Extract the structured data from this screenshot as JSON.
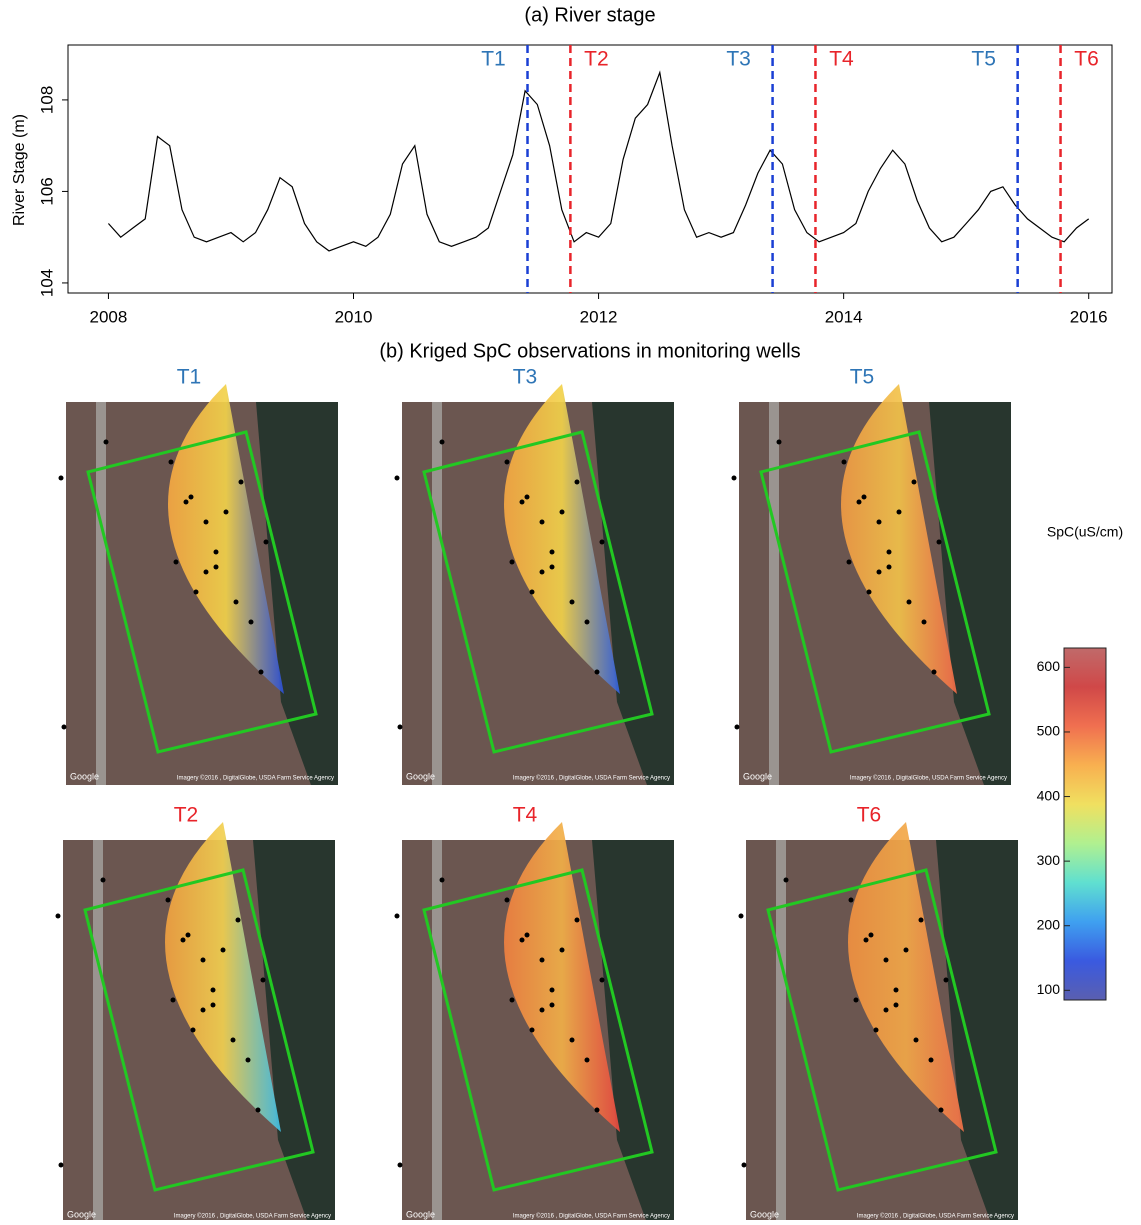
{
  "chart_data": [
    {
      "type": "line",
      "title": "(a) River stage",
      "y_label": "River Stage (m)",
      "color": "#000000",
      "x": [
        2008.0,
        2008.1,
        2008.2,
        2008.3,
        2008.4,
        2008.5,
        2008.6,
        2008.7,
        2008.8,
        2008.9,
        2009.0,
        2009.1,
        2009.2,
        2009.3,
        2009.4,
        2009.5,
        2009.6,
        2009.7,
        2009.8,
        2009.9,
        2010.0,
        2010.1,
        2010.2,
        2010.3,
        2010.4,
        2010.5,
        2010.6,
        2010.7,
        2010.8,
        2010.9,
        2011.0,
        2011.1,
        2011.2,
        2011.3,
        2011.4,
        2011.5,
        2011.6,
        2011.7,
        2011.8,
        2011.9,
        2012.0,
        2012.1,
        2012.2,
        2012.3,
        2012.4,
        2012.5,
        2012.6,
        2012.7,
        2012.8,
        2012.9,
        2013.0,
        2013.1,
        2013.2,
        2013.3,
        2013.4,
        2013.5,
        2013.6,
        2013.7,
        2013.8,
        2013.9,
        2014.0,
        2014.1,
        2014.2,
        2014.3,
        2014.4,
        2014.5,
        2014.6,
        2014.7,
        2014.8,
        2014.9,
        2015.0,
        2015.1,
        2015.2,
        2015.3,
        2015.4,
        2015.5,
        2015.6,
        2015.7,
        2015.8,
        2015.9,
        2016.0
      ],
      "values": [
        105.3,
        105.0,
        105.2,
        105.4,
        107.2,
        107.0,
        105.6,
        105.0,
        104.9,
        105.0,
        105.1,
        104.9,
        105.1,
        105.6,
        106.3,
        106.1,
        105.3,
        104.9,
        104.7,
        104.8,
        104.9,
        104.8,
        105.0,
        105.5,
        106.6,
        107.0,
        105.5,
        104.9,
        104.8,
        104.9,
        105.0,
        105.2,
        106.0,
        106.8,
        108.2,
        107.9,
        107.0,
        105.6,
        104.9,
        105.1,
        105.0,
        105.3,
        106.7,
        107.6,
        107.9,
        108.6,
        107.0,
        105.6,
        105.0,
        105.1,
        105.0,
        105.1,
        105.7,
        106.4,
        106.9,
        106.6,
        105.6,
        105.1,
        104.9,
        105.0,
        105.1,
        105.3,
        106.0,
        106.5,
        106.9,
        106.6,
        105.8,
        105.2,
        104.9,
        105.0,
        105.3,
        105.6,
        106.0,
        106.1,
        105.7,
        105.4,
        105.2,
        105.0,
        104.9,
        105.2,
        105.4
      ],
      "xlim": [
        2007.67,
        2016.19
      ],
      "xticks": [
        2008,
        2010,
        2012,
        2014,
        2016
      ],
      "ylim": [
        103.78,
        109.2
      ],
      "yticks": [
        104,
        106,
        108
      ],
      "markers": [
        {
          "label": "T1",
          "x": 2011.42,
          "color": "#1a3fd4",
          "label_color": "#2e75b6"
        },
        {
          "label": "T2",
          "x": 2011.77,
          "color": "#e8242a",
          "label_color": "#e8242a"
        },
        {
          "label": "T3",
          "x": 2013.42,
          "color": "#1a3fd4",
          "label_color": "#2e75b6"
        },
        {
          "label": "T4",
          "x": 2013.77,
          "color": "#e8242a",
          "label_color": "#e8242a"
        },
        {
          "label": "T5",
          "x": 2015.42,
          "color": "#1a3fd4",
          "label_color": "#2e75b6"
        },
        {
          "label": "T6",
          "x": 2015.77,
          "color": "#e8242a",
          "label_color": "#e8242a"
        }
      ]
    },
    {
      "type": "map",
      "title": "(b) Kriged SpC observations in monitoring wells",
      "attribution": "Google",
      "imagery": "Imagery ©2016 , DigitalGlobe, USDA Farm Service Agency",
      "panels": [
        {
          "title": "T1",
          "title_color": "#2e75b6",
          "fan_colors": [
            "#f5a742",
            "#f2d24a",
            "#2a4fd8"
          ]
        },
        {
          "title": "T3",
          "title_color": "#2e75b6",
          "fan_colors": [
            "#f5a742",
            "#f2d24a",
            "#3060e0"
          ]
        },
        {
          "title": "T5",
          "title_color": "#2e75b6",
          "fan_colors": [
            "#f09a44",
            "#f2c24a",
            "#f06a48"
          ]
        },
        {
          "title": "T2",
          "title_color": "#e8242a",
          "fan_colors": [
            "#f0a040",
            "#f2d050",
            "#40c0e8"
          ]
        },
        {
          "title": "T4",
          "title_color": "#e8242a",
          "fan_colors": [
            "#f08040",
            "#f2b048",
            "#e84840"
          ]
        },
        {
          "title": "T6",
          "title_color": "#e8242a",
          "fan_colors": [
            "#f09040",
            "#f2a848",
            "#f07048"
          ]
        }
      ],
      "colorbar": {
        "label": "SpC(uS/cm)",
        "lim": [
          85,
          630
        ],
        "ticks": [
          100,
          200,
          300,
          400,
          500,
          600
        ],
        "colors": [
          "#5a5fb0",
          "#3a5ae0",
          "#3fa0f0",
          "#60e0d0",
          "#b0f090",
          "#f0e060",
          "#f8b050",
          "#f07050",
          "#d04848",
          "#c06a6a"
        ]
      }
    }
  ]
}
